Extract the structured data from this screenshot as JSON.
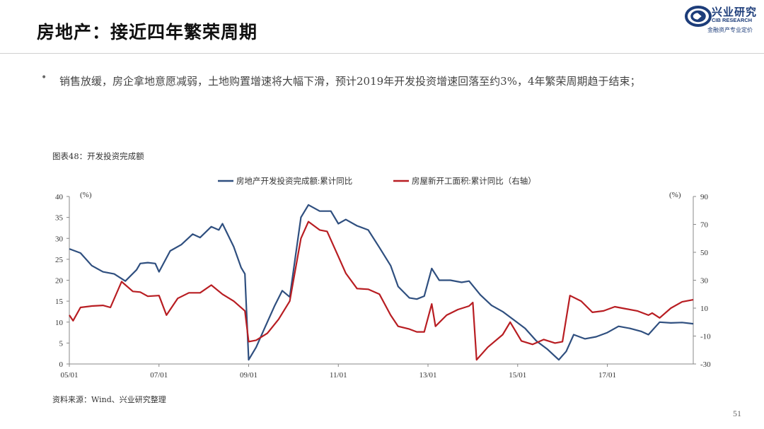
{
  "header": {
    "title": "房地产：接近四年繁荣周期",
    "logo_cn": "兴业研究",
    "logo_en": "CIB RESEARCH",
    "logo_slogan": "金融资产专业定价",
    "brand_color": "#1d3d7a"
  },
  "bullet": {
    "marker": "•",
    "text": "销售放缓，房企拿地意愿减弱，土地购置增速将大幅下滑，预计2019年开发投资增速回落至约3%，4年繁荣周期趋于结束；"
  },
  "figure_label": "图表48：开发投资完成额",
  "source": "资料来源：Wind、兴业研究整理",
  "page_number": "51",
  "chart_data": {
    "type": "line",
    "x_ticks": [
      "05/01",
      "07/01",
      "09/01",
      "11/01",
      "13/01",
      "15/01",
      "17/01"
    ],
    "x_range": [
      "2005-01",
      "2018-12"
    ],
    "y_left": {
      "range": [
        0,
        40
      ],
      "ticks": [
        0,
        5,
        10,
        15,
        20,
        25,
        30,
        35,
        40
      ],
      "unit": "(%)"
    },
    "y_right": {
      "range": [
        -30,
        90
      ],
      "ticks": [
        -30,
        -10,
        10,
        30,
        50,
        70,
        90
      ],
      "unit": "(%)"
    },
    "legend_position": "top",
    "series": [
      {
        "name": "房地产开发投资完成额:累计同比",
        "axis": "left",
        "color": "#2f4f7f",
        "points": [
          [
            "2005-01",
            27.5
          ],
          [
            "2005-04",
            26.5
          ],
          [
            "2005-07",
            23.5
          ],
          [
            "2005-10",
            22.0
          ],
          [
            "2006-01",
            21.5
          ],
          [
            "2006-04",
            19.8
          ],
          [
            "2006-07",
            22.5
          ],
          [
            "2006-08",
            24.0
          ],
          [
            "2006-10",
            24.2
          ],
          [
            "2006-12",
            24.0
          ],
          [
            "2007-01",
            22.0
          ],
          [
            "2007-04",
            27.0
          ],
          [
            "2007-07",
            28.5
          ],
          [
            "2007-10",
            31.0
          ],
          [
            "2007-12",
            30.2
          ],
          [
            "2008-03",
            32.8
          ],
          [
            "2008-05",
            32.0
          ],
          [
            "2008-06",
            33.5
          ],
          [
            "2008-09",
            28.0
          ],
          [
            "2008-11",
            23.0
          ],
          [
            "2008-12",
            21.5
          ],
          [
            "2009-01",
            1.0
          ],
          [
            "2009-03",
            4.0
          ],
          [
            "2009-05",
            8.0
          ],
          [
            "2009-08",
            14.0
          ],
          [
            "2009-10",
            17.5
          ],
          [
            "2009-12",
            16.0
          ],
          [
            "2010-03",
            35.0
          ],
          [
            "2010-05",
            38.0
          ],
          [
            "2010-08",
            36.5
          ],
          [
            "2010-11",
            36.5
          ],
          [
            "2011-01",
            33.5
          ],
          [
            "2011-03",
            34.5
          ],
          [
            "2011-06",
            33.0
          ],
          [
            "2011-09",
            32.0
          ],
          [
            "2011-12",
            27.8
          ],
          [
            "2012-03",
            23.5
          ],
          [
            "2012-05",
            18.5
          ],
          [
            "2012-08",
            15.8
          ],
          [
            "2012-10",
            15.5
          ],
          [
            "2012-12",
            16.2
          ],
          [
            "2013-02",
            22.8
          ],
          [
            "2013-04",
            20.0
          ],
          [
            "2013-07",
            20.0
          ],
          [
            "2013-10",
            19.5
          ],
          [
            "2013-12",
            19.8
          ],
          [
            "2014-03",
            16.5
          ],
          [
            "2014-06",
            14.0
          ],
          [
            "2014-09",
            12.5
          ],
          [
            "2014-12",
            10.5
          ],
          [
            "2015-03",
            8.5
          ],
          [
            "2015-06",
            5.5
          ],
          [
            "2015-09",
            3.5
          ],
          [
            "2015-12",
            1.0
          ],
          [
            "2016-02",
            3.0
          ],
          [
            "2016-04",
            7.0
          ],
          [
            "2016-07",
            6.0
          ],
          [
            "2016-10",
            6.5
          ],
          [
            "2017-01",
            7.5
          ],
          [
            "2017-04",
            9.0
          ],
          [
            "2017-07",
            8.5
          ],
          [
            "2017-10",
            7.8
          ],
          [
            "2017-12",
            7.0
          ],
          [
            "2018-03",
            10.0
          ],
          [
            "2018-06",
            9.8
          ],
          [
            "2018-09",
            9.9
          ],
          [
            "2018-12",
            9.6
          ]
        ]
      },
      {
        "name": "房屋新开工面积:累计同比（右轴）",
        "axis": "right",
        "color": "#b81d22",
        "points": [
          [
            "2005-01",
            5.0
          ],
          [
            "2005-02",
            1.0
          ],
          [
            "2005-04",
            10.5
          ],
          [
            "2005-07",
            11.5
          ],
          [
            "2005-10",
            12.0
          ],
          [
            "2005-12",
            10.5
          ],
          [
            "2006-03",
            29.0
          ],
          [
            "2006-06",
            22.0
          ],
          [
            "2006-08",
            21.5
          ],
          [
            "2006-10",
            18.5
          ],
          [
            "2007-01",
            19.0
          ],
          [
            "2007-03",
            5.0
          ],
          [
            "2007-06",
            17.0
          ],
          [
            "2007-09",
            21.0
          ],
          [
            "2007-12",
            21.0
          ],
          [
            "2008-03",
            26.5
          ],
          [
            "2008-06",
            20.0
          ],
          [
            "2008-09",
            15.0
          ],
          [
            "2008-12",
            8.0
          ],
          [
            "2009-01",
            -14.0
          ],
          [
            "2009-03",
            -13.0
          ],
          [
            "2009-06",
            -8.0
          ],
          [
            "2009-09",
            2.0
          ],
          [
            "2009-12",
            15.0
          ],
          [
            "2010-03",
            60.0
          ],
          [
            "2010-05",
            72.0
          ],
          [
            "2010-08",
            66.0
          ],
          [
            "2010-10",
            65.0
          ],
          [
            "2011-01",
            47.0
          ],
          [
            "2011-03",
            35.0
          ],
          [
            "2011-06",
            24.0
          ],
          [
            "2011-09",
            23.5
          ],
          [
            "2011-12",
            20.0
          ],
          [
            "2012-03",
            5.0
          ],
          [
            "2012-05",
            -3.0
          ],
          [
            "2012-08",
            -5.0
          ],
          [
            "2012-10",
            -7.0
          ],
          [
            "2012-12",
            -7.0
          ],
          [
            "2013-02",
            13.0
          ],
          [
            "2013-03",
            -3.0
          ],
          [
            "2013-06",
            5.0
          ],
          [
            "2013-09",
            9.0
          ],
          [
            "2013-12",
            11.5
          ],
          [
            "2014-01",
            14.0
          ],
          [
            "2014-02",
            -27.0
          ],
          [
            "2014-05",
            -18.0
          ],
          [
            "2014-09",
            -9.0
          ],
          [
            "2014-11",
            0.0
          ],
          [
            "2015-02",
            -13.5
          ],
          [
            "2015-05",
            -16.0
          ],
          [
            "2015-08",
            -12.5
          ],
          [
            "2015-11",
            -15.0
          ],
          [
            "2016-01",
            -14.0
          ],
          [
            "2016-03",
            19.0
          ],
          [
            "2016-06",
            15.0
          ],
          [
            "2016-09",
            7.0
          ],
          [
            "2016-12",
            8.0
          ],
          [
            "2017-03",
            11.0
          ],
          [
            "2017-06",
            9.5
          ],
          [
            "2017-09",
            8.0
          ],
          [
            "2017-12",
            5.0
          ],
          [
            "2018-01",
            6.5
          ],
          [
            "2018-03",
            3.0
          ],
          [
            "2018-06",
            10.0
          ],
          [
            "2018-09",
            14.5
          ],
          [
            "2018-12",
            16.0
          ]
        ]
      }
    ]
  }
}
